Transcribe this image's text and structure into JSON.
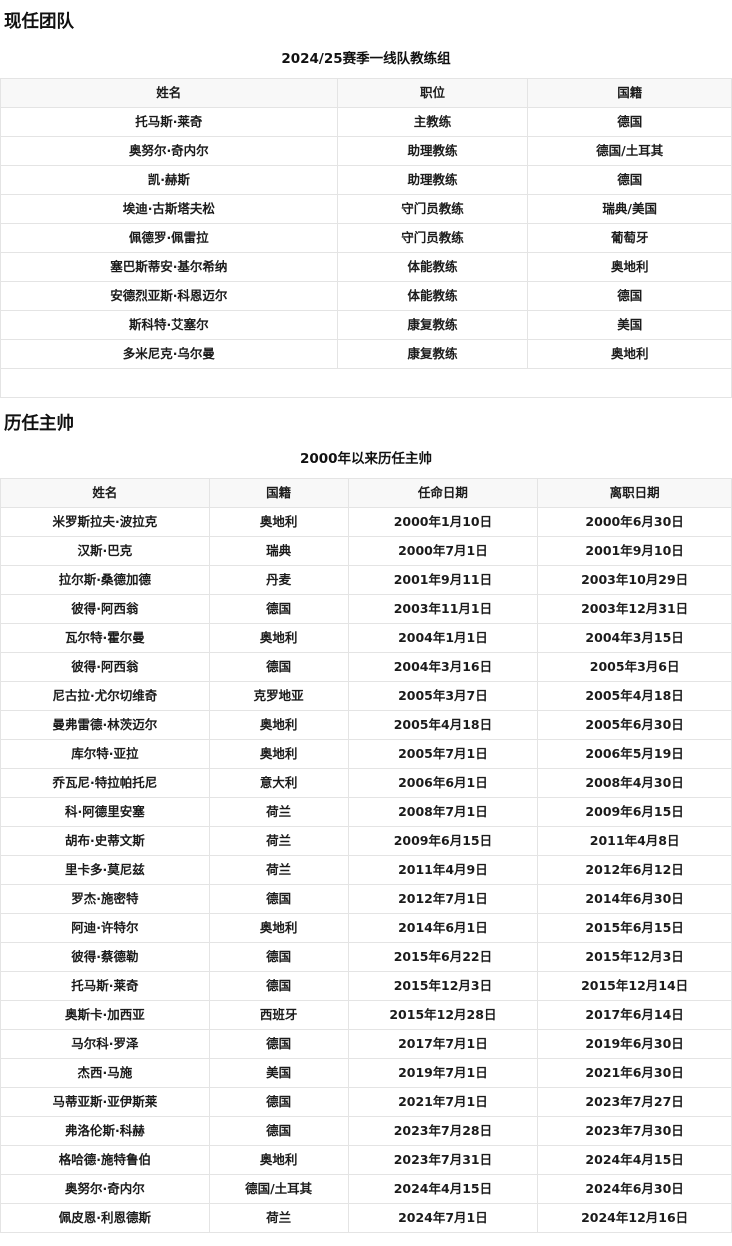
{
  "sections": {
    "current_team": {
      "title": "现任团队"
    },
    "past_managers": {
      "title": "历任主帅"
    }
  },
  "coaching_table": {
    "caption": "2024/25赛季一线队教练组",
    "headers": [
      "姓名",
      "职位",
      "国籍"
    ],
    "rows": [
      [
        "托马斯·莱奇",
        "主教练",
        "德国"
      ],
      [
        "奥努尔·奇内尔",
        "助理教练",
        "德国/土耳其"
      ],
      [
        "凯·赫斯",
        "助理教练",
        "德国"
      ],
      [
        "埃迪·古斯塔夫松",
        "守门员教练",
        "瑞典/美国"
      ],
      [
        "佩德罗·佩雷拉",
        "守门员教练",
        "葡萄牙"
      ],
      [
        "塞巴斯蒂安·基尔希纳",
        "体能教练",
        "奥地利"
      ],
      [
        "安德烈亚斯·科恩迈尔",
        "体能教练",
        "德国"
      ],
      [
        "斯科特·艾塞尔",
        "康复教练",
        "美国"
      ],
      [
        "多米尼克·乌尔曼",
        "康复教练",
        "奥地利"
      ]
    ],
    "footer_note": ""
  },
  "managers_table": {
    "caption": "2000年以来历任主帅",
    "headers": [
      "姓名",
      "国籍",
      "任命日期",
      "离职日期"
    ],
    "rows": [
      [
        "米罗斯拉夫·波拉克",
        "奥地利",
        "2000年1月10日",
        "2000年6月30日"
      ],
      [
        "汉斯·巴克",
        "瑞典",
        "2000年7月1日",
        "2001年9月10日"
      ],
      [
        "拉尔斯·桑德加德",
        "丹麦",
        "2001年9月11日",
        "2003年10月29日"
      ],
      [
        "彼得·阿西翁",
        "德国",
        "2003年11月1日",
        "2003年12月31日"
      ],
      [
        "瓦尔特·霍尔曼",
        "奥地利",
        "2004年1月1日",
        "2004年3月15日"
      ],
      [
        "彼得·阿西翁",
        "德国",
        "2004年3月16日",
        "2005年3月6日"
      ],
      [
        "尼古拉·尤尔切维奇",
        "克罗地亚",
        "2005年3月7日",
        "2005年4月18日"
      ],
      [
        "曼弗雷德·林茨迈尔",
        "奥地利",
        "2005年4月18日",
        "2005年6月30日"
      ],
      [
        "库尔特·亚拉",
        "奥地利",
        "2005年7月1日",
        "2006年5月19日"
      ],
      [
        "乔瓦尼·特拉帕托尼",
        "意大利",
        "2006年6月1日",
        "2008年4月30日"
      ],
      [
        "科·阿德里安塞",
        "荷兰",
        "2008年7月1日",
        "2009年6月15日"
      ],
      [
        "胡布·史蒂文斯",
        "荷兰",
        "2009年6月15日",
        "2011年4月8日"
      ],
      [
        "里卡多·莫尼兹",
        "荷兰",
        "2011年4月9日",
        "2012年6月12日"
      ],
      [
        "罗杰·施密特",
        "德国",
        "2012年7月1日",
        "2014年6月30日"
      ],
      [
        "阿迪·许特尔",
        "奥地利",
        "2014年6月1日",
        "2015年6月15日"
      ],
      [
        "彼得·蔡德勒",
        "德国",
        "2015年6月22日",
        "2015年12月3日"
      ],
      [
        "托马斯·莱奇",
        "德国",
        "2015年12月3日",
        "2015年12月14日"
      ],
      [
        "奥斯卡·加西亚",
        "西班牙",
        "2015年12月28日",
        "2017年6月14日"
      ],
      [
        "马尔科·罗泽",
        "德国",
        "2017年7月1日",
        "2019年6月30日"
      ],
      [
        "杰西·马施",
        "美国",
        "2019年7月1日",
        "2021年6月30日"
      ],
      [
        "马蒂亚斯·亚伊斯莱",
        "德国",
        "2021年7月1日",
        "2023年7月27日"
      ],
      [
        "弗洛伦斯·科赫",
        "德国",
        "2023年7月28日",
        "2023年7月30日"
      ],
      [
        "格哈德·施特鲁伯",
        "奥地利",
        "2023年7月31日",
        "2024年4月15日"
      ],
      [
        "奥努尔·奇内尔",
        "德国/土耳其",
        "2024年4月15日",
        "2024年6月30日"
      ],
      [
        "佩皮恩·利恩德斯",
        "荷兰",
        "2024年7月1日",
        "2024年12月16日"
      ]
    ]
  },
  "colors": {
    "header_bg": "#f8f8f8",
    "border": "#e4e4e4",
    "text": "#1b1b1b"
  }
}
